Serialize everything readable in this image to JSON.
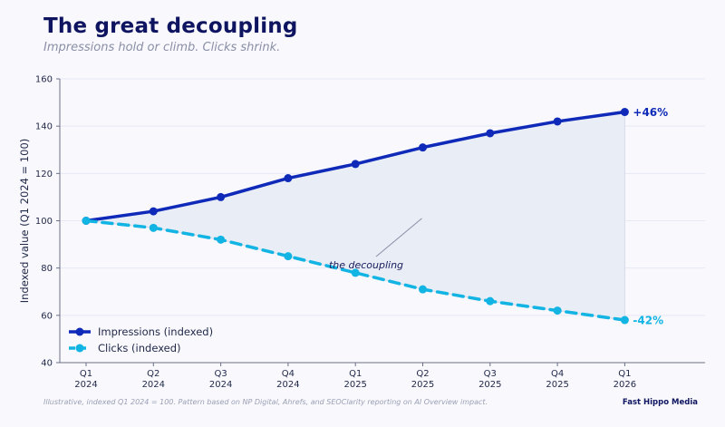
{
  "title": "The great decoupling",
  "subtitle": "Impressions hold or climb. Clicks shrink.",
  "footnote": "Illustrative, indexed Q1 2024 = 100. Pattern based on NP Digital, Ahrefs, and SEOClarity reporting on AI Overview impact.",
  "brand": "Fast Hippo Media",
  "colors": {
    "impressions": "#0f2ab8",
    "clicks": "#12b4e3",
    "fill": "#e9edf6",
    "axis": "#6b7088",
    "grid": "#e6e8f2"
  },
  "chart_data": {
    "type": "line",
    "categories": [
      [
        "Q1",
        "2024"
      ],
      [
        "Q2",
        "2024"
      ],
      [
        "Q3",
        "2024"
      ],
      [
        "Q4",
        "2024"
      ],
      [
        "Q1",
        "2025"
      ],
      [
        "Q2",
        "2025"
      ],
      [
        "Q3",
        "2025"
      ],
      [
        "Q4",
        "2025"
      ],
      [
        "Q1",
        "2026"
      ]
    ],
    "ylabel": "Indexed value (Q1 2024 = 100)",
    "xlabel": "",
    "ylim": [
      40,
      160
    ],
    "yticks": [
      40,
      60,
      80,
      100,
      120,
      140,
      160
    ],
    "grid": true,
    "legend": "bottom-left",
    "series": [
      {
        "name": "Impressions (indexed)",
        "style": "solid",
        "values": [
          100,
          104,
          110,
          118,
          124,
          131,
          137,
          142,
          146
        ],
        "end_label": "+46%"
      },
      {
        "name": "Clicks (indexed)",
        "style": "dashed",
        "values": [
          100,
          97,
          92,
          85,
          78,
          71,
          66,
          62,
          58
        ],
        "end_label": "-42%"
      }
    ],
    "annotation": {
      "text": "the decoupling",
      "category_index": 5,
      "y_value": 101
    }
  }
}
